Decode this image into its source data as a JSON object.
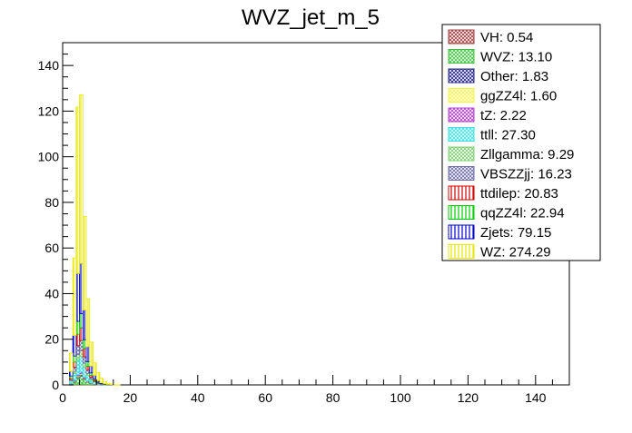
{
  "chart_data": {
    "type": "bar",
    "title": "WVZ_jet_m_5",
    "xlabel": "",
    "ylabel": "",
    "xlim": [
      0,
      150
    ],
    "ylim": [
      0,
      150
    ],
    "x_ticks": [
      0,
      20,
      40,
      60,
      80,
      100,
      120,
      140
    ],
    "y_ticks": [
      0,
      20,
      40,
      60,
      80,
      100,
      120,
      140
    ],
    "grid": false,
    "stacked": true,
    "bin_width": 1,
    "legend_position": "top-right",
    "x": [
      2,
      3,
      4,
      5,
      6,
      7,
      8,
      9,
      10,
      11,
      12,
      13,
      14,
      15,
      16
    ],
    "series": [
      {
        "name": "VH: 0.54",
        "color": "#a33c3c",
        "pattern": "crosshatch",
        "values": [
          0.02,
          0.06,
          0.12,
          0.14,
          0.1,
          0.06,
          0.03,
          0.01,
          0,
          0,
          0,
          0,
          0,
          0,
          0
        ]
      },
      {
        "name": "WVZ: 13.10",
        "color": "#3cc33c",
        "pattern": "crosshatch",
        "values": [
          0.4,
          1.2,
          3.0,
          3.8,
          2.4,
          1.2,
          0.6,
          0.3,
          0.1,
          0.05,
          0.05,
          0,
          0,
          0,
          0
        ]
      },
      {
        "name": "Other: 1.83",
        "color": "#23238f",
        "pattern": "crosshatch",
        "values": [
          0.06,
          0.2,
          0.45,
          0.5,
          0.3,
          0.15,
          0.08,
          0.05,
          0.02,
          0.02,
          0,
          0,
          0,
          0,
          0
        ]
      },
      {
        "name": "ggZZ4l: 1.60",
        "color": "#f4f442",
        "pattern": "crosshatch",
        "values": [
          0.05,
          0.2,
          0.4,
          0.45,
          0.25,
          0.13,
          0.07,
          0.03,
          0.02,
          0,
          0,
          0,
          0,
          0,
          0
        ]
      },
      {
        "name": "tZ: 2.22",
        "color": "#b43cd0",
        "pattern": "crosshatch",
        "values": [
          0.08,
          0.3,
          0.55,
          0.6,
          0.35,
          0.18,
          0.1,
          0.04,
          0.02,
          0,
          0,
          0,
          0,
          0,
          0
        ]
      },
      {
        "name": "ttll: 27.30",
        "color": "#33e3e3",
        "pattern": "crosshatch",
        "values": [
          1.0,
          3.0,
          6.5,
          7.0,
          4.5,
          2.5,
          1.3,
          0.7,
          0.4,
          0.2,
          0.1,
          0.1,
          0,
          0,
          0
        ]
      },
      {
        "name": "Zllgamma: 9.29",
        "color": "#7ccf6f",
        "pattern": "crosshatch",
        "values": [
          0.3,
          1.0,
          2.2,
          2.5,
          1.6,
          0.8,
          0.45,
          0.25,
          0.1,
          0.05,
          0.04,
          0,
          0,
          0,
          0
        ]
      },
      {
        "name": "VBSZZjj: 16.23",
        "color": "#6b6ba8",
        "pattern": "crosshatch",
        "values": [
          0.5,
          1.8,
          4.0,
          4.4,
          2.8,
          1.4,
          0.7,
          0.35,
          0.15,
          0.08,
          0.05,
          0,
          0,
          0,
          0
        ]
      },
      {
        "name": "ttdilep: 20.83",
        "color": "#d40000",
        "pattern": "vertical",
        "values": [
          0.7,
          2.3,
          5.0,
          5.6,
          3.6,
          1.8,
          0.9,
          0.5,
          0.25,
          0.1,
          0.05,
          0.03,
          0,
          0,
          0
        ]
      },
      {
        "name": "qqZZ4l: 22.94",
        "color": "#00cc00",
        "pattern": "vertical",
        "values": [
          0.8,
          2.6,
          5.6,
          6.2,
          3.9,
          2.0,
          1.0,
          0.45,
          0.2,
          0.1,
          0.05,
          0.04,
          0,
          0,
          0
        ]
      },
      {
        "name": "Zjets: 79.15",
        "color": "#0000cc",
        "pattern": "vertical",
        "values": [
          2.0,
          9.0,
          21.0,
          22.0,
          13.0,
          6.5,
          3.0,
          1.5,
          0.6,
          0.3,
          0.15,
          0.05,
          0.05,
          0,
          0
        ]
      },
      {
        "name": "WZ: 274.29",
        "color": "#e8e800",
        "pattern": "vertical",
        "values": [
          8.0,
          34.0,
          73.0,
          74.0,
          41.0,
          21.0,
          10.5,
          5.5,
          3.5,
          2.0,
          1.0,
          0.5,
          0.2,
          0.05,
          0.04
        ]
      }
    ]
  }
}
